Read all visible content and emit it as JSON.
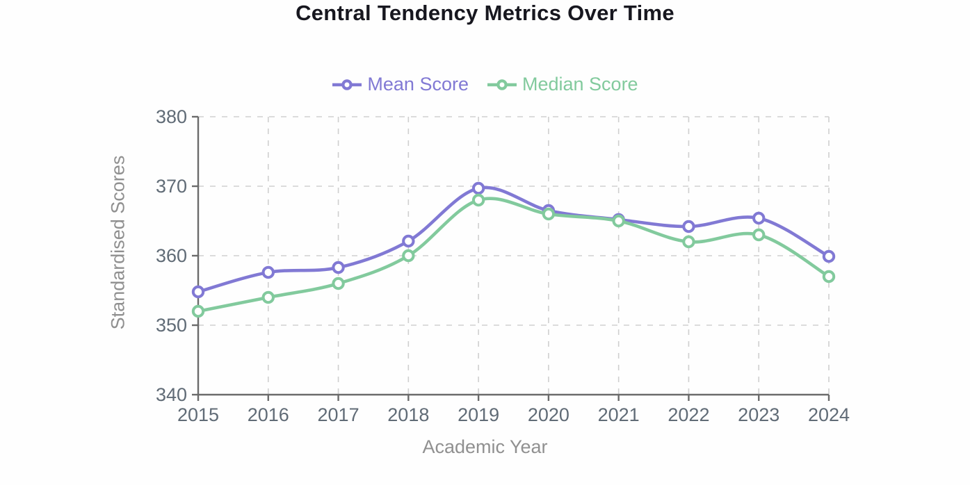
{
  "title": "Central Tendency Metrics Over Time",
  "colors": {
    "mean_series": "#8179d4",
    "median_series": "#82ca9d",
    "title_text": "#17171f",
    "tick_label": "#606b76",
    "axis_line": "#6b6b6b",
    "gridline": "#cfcfcf",
    "axis_title": "#909090",
    "background": "#fefefe",
    "point_fill": "#ffffff"
  },
  "icons": {
    "legend_marker": "line-with-hollow-circle"
  },
  "chart_data": {
    "type": "line",
    "title": "Central Tendency Metrics Over Time",
    "x": [
      2015,
      2016,
      2017,
      2018,
      2019,
      2020,
      2021,
      2022,
      2023,
      2024
    ],
    "series": [
      {
        "name": "Mean Score",
        "color_key": "mean_series",
        "values": [
          354.8,
          357.6,
          358.3,
          362.1,
          369.7,
          366.5,
          365.2,
          364.2,
          365.4,
          359.9
        ]
      },
      {
        "name": "Median Score",
        "color_key": "median_series",
        "values": [
          352,
          354,
          356,
          360,
          368,
          366,
          365,
          362,
          363,
          357
        ]
      }
    ],
    "xlabel": "Academic Year",
    "ylabel": "Standardised Scores",
    "ylim": [
      340,
      380
    ],
    "yticks": [
      340,
      350,
      360,
      370,
      380
    ],
    "grid": true,
    "grid_style": "dashed",
    "legend_position": "top",
    "marker_style": "hollow-circle",
    "curve": "smooth"
  }
}
